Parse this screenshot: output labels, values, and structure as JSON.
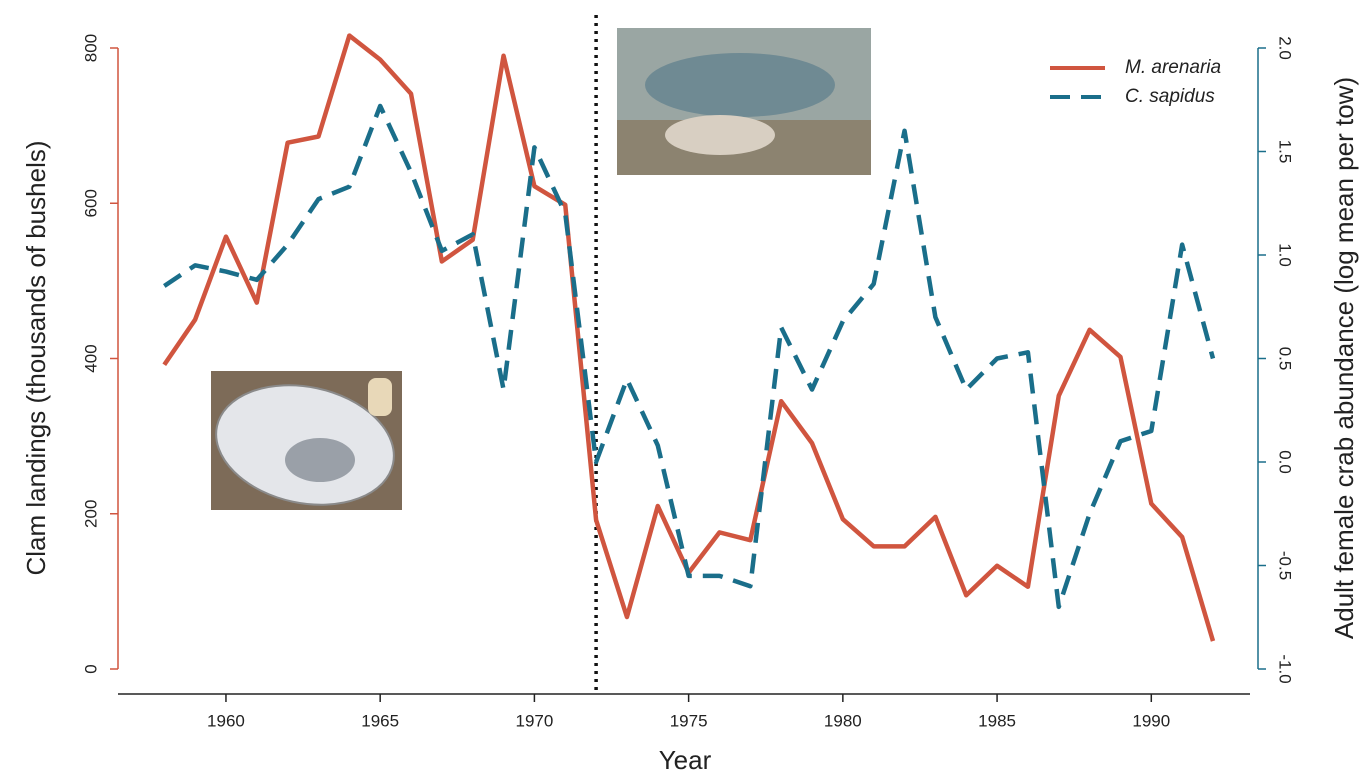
{
  "chart_data": {
    "type": "line",
    "x_label": "Year",
    "y_label": "Clam landings (thousands of bushels)",
    "y2_label": "Adult female crab abundance (log mean per tow)",
    "x": [
      1958,
      1959,
      1960,
      1961,
      1962,
      1963,
      1964,
      1965,
      1966,
      1967,
      1968,
      1969,
      1970,
      1971,
      1972,
      1973,
      1974,
      1975,
      1976,
      1977,
      1978,
      1979,
      1980,
      1981,
      1982,
      1983,
      1984,
      1985,
      1986,
      1987,
      1988,
      1989,
      1990,
      1991,
      1992
    ],
    "series": [
      {
        "name": "M. arenaria",
        "color": "#d0553f",
        "axis": "y",
        "values": [
          392,
          450,
          557,
          472,
          678,
          686,
          816,
          785,
          741,
          525,
          553,
          790,
          622,
          598,
          192,
          67,
          210,
          124,
          176,
          166,
          345,
          291,
          193,
          158,
          158,
          196,
          95,
          133,
          106,
          352,
          437,
          402,
          213,
          170,
          36
        ]
      },
      {
        "name": "C. sapidus",
        "color": "#1a6e8a",
        "axis": "y2",
        "dash": true,
        "values": [
          0.85,
          0.95,
          0.92,
          0.88,
          1.05,
          1.27,
          1.33,
          1.72,
          1.4,
          1.02,
          1.1,
          0.35,
          1.52,
          1.2,
          0.0,
          0.4,
          0.08,
          -0.55,
          -0.55,
          -0.6,
          0.65,
          0.35,
          0.68,
          0.86,
          1.6,
          0.7,
          0.35,
          0.5,
          0.53,
          -0.7,
          -0.25,
          0.1,
          0.15,
          1.05,
          0.5
        ]
      }
    ],
    "vline": 1972,
    "xlim": [
      1956.5,
      1993.2
    ],
    "xticks": [
      1960,
      1965,
      1970,
      1975,
      1980,
      1985,
      1990
    ],
    "ylim": [
      0,
      800
    ],
    "yticks": [
      0,
      200,
      400,
      600,
      800
    ],
    "y2lim": [
      -1.0,
      2.0
    ],
    "y2ticks": [
      {
        "value": -1.0,
        "label": "-1.0"
      },
      -0.5,
      {
        "value": 0.0,
        "label": "0.0"
      },
      0.5,
      {
        "value": 1.0,
        "label": "1.0"
      },
      1.5,
      {
        "value": 2.0,
        "label": "2.0"
      }
    ],
    "legend": "top-right"
  }
}
